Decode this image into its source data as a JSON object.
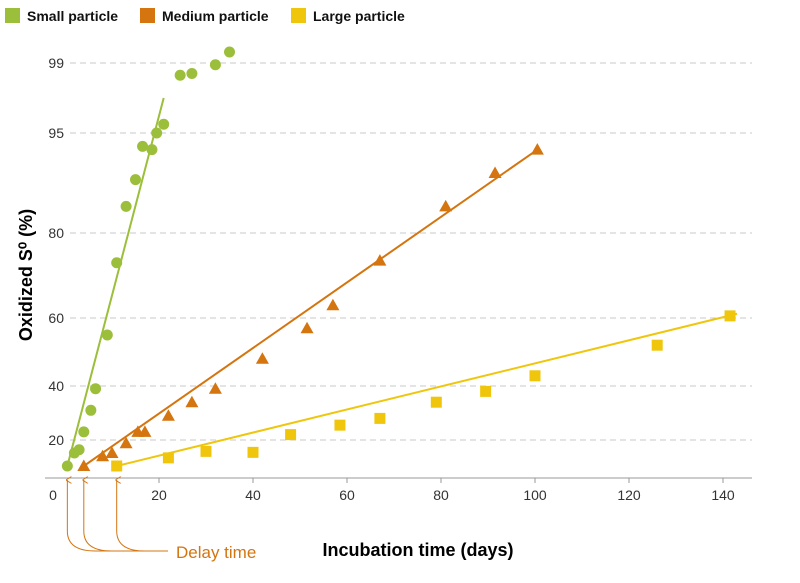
{
  "chart_data": {
    "type": "scatter",
    "xlabel": "Incubation time (days)",
    "ylabel": "Oxidized S⁰ (%)",
    "xlim": [
      0,
      145
    ],
    "x_ticks": [
      0,
      20,
      40,
      60,
      80,
      100,
      120,
      140
    ],
    "y_ticks": [
      20,
      40,
      60,
      80,
      95,
      99
    ],
    "y_scale": "probability",
    "gridlines": "horizontal-dashed",
    "legend_position": "top-left",
    "series": [
      {
        "name": "Small particle",
        "color": "#9bbf3a",
        "marker": "circle",
        "x": [
          0.5,
          2,
          3,
          4,
          5.5,
          6.5,
          9,
          11,
          13,
          15,
          16.5,
          18.5,
          19.5,
          21,
          24.5,
          27,
          32,
          35
        ],
        "y": [
          12,
          16,
          17,
          23,
          31,
          39,
          55,
          73,
          84,
          88,
          93,
          92.5,
          95,
          95.5,
          98.3,
          98.4,
          98.9,
          99.3
        ],
        "fit_line": {
          "x": [
            0.5,
            21
          ],
          "y": [
            12,
            97
          ]
        }
      },
      {
        "name": "Medium particle",
        "color": "#d4750f",
        "marker": "triangle",
        "x": [
          4,
          8,
          10,
          13,
          15.5,
          17,
          22,
          27,
          32,
          42,
          51.5,
          57,
          67,
          81,
          91.5,
          100.5
        ],
        "y": [
          12,
          15,
          16,
          19,
          23,
          23,
          29,
          34,
          39,
          48,
          57,
          63,
          73.5,
          84,
          89,
          92.5
        ],
        "fit_line": {
          "x": [
            4,
            100.5
          ],
          "y": [
            12,
            92.5
          ]
        }
      },
      {
        "name": "Large particle",
        "color": "#efc60c",
        "marker": "square",
        "x": [
          11,
          22,
          30,
          40,
          48,
          58.5,
          67,
          79,
          89.5,
          100,
          126,
          141.5
        ],
        "y": [
          12,
          14.5,
          16.5,
          16.2,
          22,
          25.5,
          28,
          34,
          38,
          43,
          52,
          60.5
        ],
        "fit_line": {
          "x": [
            11,
            143
          ],
          "y": [
            12,
            61
          ]
        }
      }
    ],
    "annotation": {
      "text": "Delay time",
      "color": "#d4750f",
      "points_x": [
        0.5,
        4,
        11
      ]
    }
  }
}
